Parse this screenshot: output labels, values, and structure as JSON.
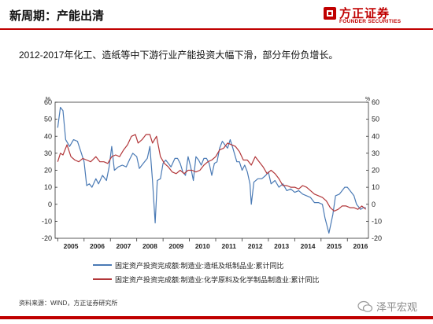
{
  "header": {
    "title": "新周期：产能出清"
  },
  "logo": {
    "cn": "方正证券",
    "en": "FOUNDER SECURITIES"
  },
  "subtitle": "2012-2017年化工、造纸等中下游行业产能投资大幅下滑，部分年份负增长。",
  "source": "资料来源：WIND，方正证券研究所",
  "watermark": "泽平宏观",
  "colors": {
    "brand_red": "#c00000",
    "series_blue": "#4a7ab5",
    "series_red": "#b2373a"
  },
  "chart_data": {
    "type": "line",
    "left_unit": "%",
    "right_unit": "%",
    "xlim": [
      2004.9,
      2016.8
    ],
    "ylim": [
      -20,
      60
    ],
    "y_ticks": [
      -20,
      -10,
      0,
      10,
      20,
      30,
      40,
      50,
      60
    ],
    "x_ticks": [
      {
        "label": "2005",
        "x": 2005.5
      },
      {
        "label": "2006",
        "x": 2006.5
      },
      {
        "label": "2007",
        "x": 2007.5
      },
      {
        "label": "2008",
        "x": 2008.5
      },
      {
        "label": "2009",
        "x": 2009.5
      },
      {
        "label": "2010",
        "x": 2010.5
      },
      {
        "label": "2011",
        "x": 2011.5
      },
      {
        "label": "2012",
        "x": 2012.5
      },
      {
        "label": "2013",
        "x": 2013.5
      },
      {
        "label": "2014",
        "x": 2014.5
      },
      {
        "label": "2015",
        "x": 2015.5
      },
      {
        "label": "2016",
        "x": 2016.5
      }
    ],
    "series": [
      {
        "name": "固定资产投资完成额:制造业:造纸及纸制品业:累计同比",
        "color": "#4a7ab5",
        "points": [
          [
            2005.0,
            45
          ],
          [
            2005.1,
            57
          ],
          [
            2005.2,
            55
          ],
          [
            2005.3,
            38
          ],
          [
            2005.45,
            34
          ],
          [
            2005.6,
            38
          ],
          [
            2005.75,
            37
          ],
          [
            2005.9,
            30
          ],
          [
            2006.0,
            25
          ],
          [
            2006.1,
            11
          ],
          [
            2006.2,
            12
          ],
          [
            2006.3,
            10
          ],
          [
            2006.45,
            15
          ],
          [
            2006.55,
            12
          ],
          [
            2006.7,
            17
          ],
          [
            2006.85,
            14
          ],
          [
            2006.95,
            22
          ],
          [
            2007.05,
            34
          ],
          [
            2007.15,
            20
          ],
          [
            2007.3,
            22
          ],
          [
            2007.45,
            23
          ],
          [
            2007.6,
            22
          ],
          [
            2007.75,
            27
          ],
          [
            2007.85,
            30
          ],
          [
            2008.0,
            28
          ],
          [
            2008.1,
            21
          ],
          [
            2008.25,
            24
          ],
          [
            2008.4,
            27
          ],
          [
            2008.5,
            34
          ],
          [
            2008.6,
            14
          ],
          [
            2008.7,
            -11
          ],
          [
            2008.78,
            14
          ],
          [
            2008.9,
            15
          ],
          [
            2009.0,
            24
          ],
          [
            2009.1,
            26
          ],
          [
            2009.2,
            24
          ],
          [
            2009.3,
            22
          ],
          [
            2009.45,
            27
          ],
          [
            2009.55,
            27
          ],
          [
            2009.65,
            24
          ],
          [
            2009.75,
            19
          ],
          [
            2009.85,
            17
          ],
          [
            2009.95,
            28
          ],
          [
            2010.05,
            22
          ],
          [
            2010.15,
            14
          ],
          [
            2010.25,
            28
          ],
          [
            2010.35,
            26
          ],
          [
            2010.45,
            23
          ],
          [
            2010.55,
            27
          ],
          [
            2010.65,
            27
          ],
          [
            2010.75,
            24
          ],
          [
            2010.85,
            17
          ],
          [
            2010.95,
            24
          ],
          [
            2011.05,
            25
          ],
          [
            2011.15,
            33
          ],
          [
            2011.25,
            37
          ],
          [
            2011.35,
            35
          ],
          [
            2011.45,
            33
          ],
          [
            2011.55,
            38
          ],
          [
            2011.65,
            33
          ],
          [
            2011.8,
            25
          ],
          [
            2011.9,
            25
          ],
          [
            2012.0,
            20
          ],
          [
            2012.1,
            23
          ],
          [
            2012.2,
            19
          ],
          [
            2012.3,
            12
          ],
          [
            2012.35,
            0
          ],
          [
            2012.45,
            13
          ],
          [
            2012.6,
            15
          ],
          [
            2012.75,
            15
          ],
          [
            2012.9,
            17
          ],
          [
            2013.0,
            19
          ],
          [
            2013.1,
            12
          ],
          [
            2013.25,
            14
          ],
          [
            2013.4,
            10
          ],
          [
            2013.55,
            12
          ],
          [
            2013.7,
            8
          ],
          [
            2013.85,
            9
          ],
          [
            2014.0,
            7
          ],
          [
            2014.15,
            8
          ],
          [
            2014.3,
            6
          ],
          [
            2014.45,
            5
          ],
          [
            2014.6,
            4
          ],
          [
            2014.75,
            1
          ],
          [
            2014.9,
            1
          ],
          [
            2015.05,
            0
          ],
          [
            2015.15,
            -8
          ],
          [
            2015.3,
            -17
          ],
          [
            2015.45,
            -6
          ],
          [
            2015.55,
            5
          ],
          [
            2015.7,
            6
          ],
          [
            2015.8,
            8
          ],
          [
            2015.9,
            10
          ],
          [
            2016.0,
            10
          ],
          [
            2016.1,
            8
          ],
          [
            2016.25,
            5
          ],
          [
            2016.35,
            0
          ],
          [
            2016.5,
            -3
          ],
          [
            2016.6,
            -2
          ],
          [
            2016.7,
            -2
          ]
        ]
      },
      {
        "name": "固定资产投资完成额:制造业:化学原料及化学制品制造业:累计同比",
        "color": "#b2373a",
        "points": [
          [
            2005.0,
            25
          ],
          [
            2005.1,
            30
          ],
          [
            2005.2,
            29
          ],
          [
            2005.35,
            35
          ],
          [
            2005.5,
            28
          ],
          [
            2005.65,
            26
          ],
          [
            2005.8,
            25
          ],
          [
            2005.95,
            27
          ],
          [
            2006.1,
            26
          ],
          [
            2006.25,
            25
          ],
          [
            2006.45,
            28
          ],
          [
            2006.6,
            25
          ],
          [
            2006.75,
            25
          ],
          [
            2006.9,
            24
          ],
          [
            2007.05,
            28
          ],
          [
            2007.2,
            29
          ],
          [
            2007.35,
            28
          ],
          [
            2007.5,
            32
          ],
          [
            2007.65,
            35
          ],
          [
            2007.8,
            40
          ],
          [
            2007.95,
            41
          ],
          [
            2008.05,
            36
          ],
          [
            2008.2,
            38
          ],
          [
            2008.35,
            41
          ],
          [
            2008.5,
            41
          ],
          [
            2008.6,
            36
          ],
          [
            2008.75,
            40
          ],
          [
            2008.9,
            28
          ],
          [
            2009.05,
            24
          ],
          [
            2009.2,
            22
          ],
          [
            2009.35,
            19
          ],
          [
            2009.5,
            18
          ],
          [
            2009.65,
            20
          ],
          [
            2009.8,
            18
          ],
          [
            2009.95,
            20
          ],
          [
            2010.1,
            20
          ],
          [
            2010.25,
            19
          ],
          [
            2010.4,
            20
          ],
          [
            2010.55,
            23
          ],
          [
            2010.7,
            25
          ],
          [
            2010.85,
            26
          ],
          [
            2011.0,
            28
          ],
          [
            2011.15,
            32
          ],
          [
            2011.3,
            33
          ],
          [
            2011.45,
            36
          ],
          [
            2011.6,
            35
          ],
          [
            2011.75,
            34
          ],
          [
            2011.9,
            31
          ],
          [
            2012.05,
            26
          ],
          [
            2012.2,
            26
          ],
          [
            2012.35,
            23
          ],
          [
            2012.5,
            28
          ],
          [
            2012.65,
            25
          ],
          [
            2012.8,
            22
          ],
          [
            2012.95,
            18
          ],
          [
            2013.1,
            20
          ],
          [
            2013.25,
            18
          ],
          [
            2013.4,
            15
          ],
          [
            2013.55,
            11
          ],
          [
            2013.7,
            11
          ],
          [
            2013.85,
            10
          ],
          [
            2014.0,
            10
          ],
          [
            2014.15,
            9
          ],
          [
            2014.3,
            11
          ],
          [
            2014.45,
            10
          ],
          [
            2014.6,
            8
          ],
          [
            2014.75,
            6
          ],
          [
            2014.9,
            5
          ],
          [
            2015.05,
            4
          ],
          [
            2015.2,
            2
          ],
          [
            2015.35,
            -2
          ],
          [
            2015.5,
            -4
          ],
          [
            2015.65,
            -3
          ],
          [
            2015.8,
            -1
          ],
          [
            2015.95,
            -1
          ],
          [
            2016.1,
            -2
          ],
          [
            2016.25,
            -2
          ],
          [
            2016.4,
            -3
          ],
          [
            2016.55,
            -1
          ],
          [
            2016.7,
            -3
          ]
        ]
      }
    ]
  }
}
